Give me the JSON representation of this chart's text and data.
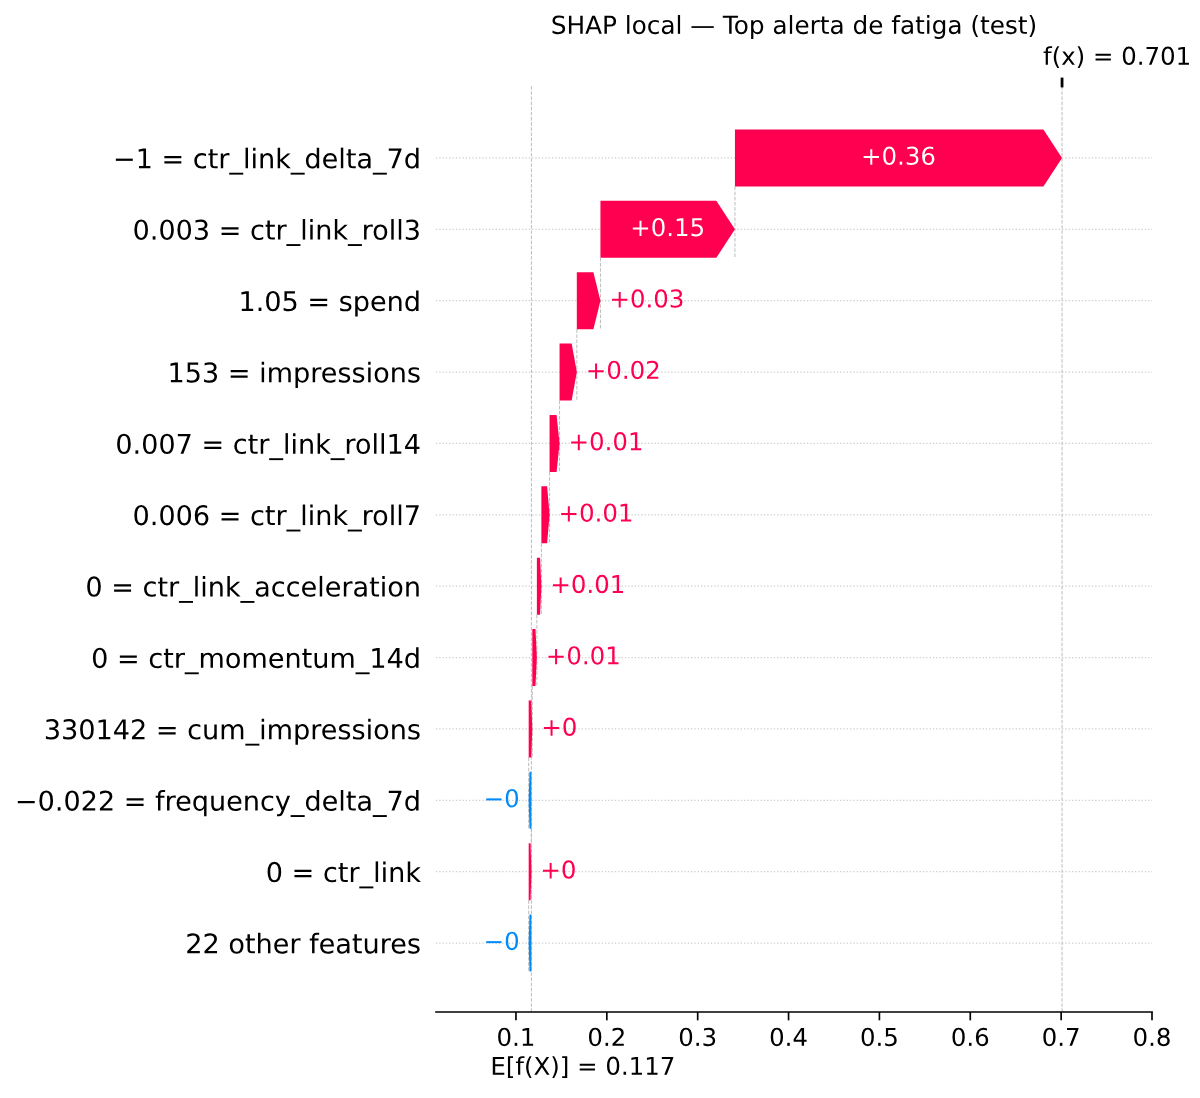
{
  "chart_data": {
    "type": "bar",
    "orientation": "horizontal",
    "title": "SHAP local — Top alerta de fatiga (test)",
    "categories": [
      "−1 = ctr_link_delta_7d",
      "0.003 = ctr_link_roll3",
      "1.05 = spend",
      "153 = impressions",
      "0.007 = ctr_link_roll14",
      "0.006 = ctr_link_roll7",
      "0 = ctr_link_acceleration",
      "0 = ctr_momentum_14d",
      "330142 = cum_impressions",
      "−0.022 = frequency_delta_7d",
      "0 = ctr_link",
      "22 other features"
    ],
    "base": [
      0.341,
      0.193,
      0.167,
      0.148,
      0.137,
      0.128,
      0.123,
      0.118,
      0.114,
      0.117,
      0.114,
      0.117
    ],
    "values": [
      0.36,
      0.148,
      0.026,
      0.019,
      0.011,
      0.009,
      0.005,
      0.005,
      0.004,
      -0.003,
      0.003,
      -0.003
    ],
    "colors": [
      "#ff0051",
      "#ff0051",
      "#ff0051",
      "#ff0051",
      "#ff0051",
      "#ff0051",
      "#ff0051",
      "#ff0051",
      "#ff0051",
      "#008bfb",
      "#ff0051",
      "#008bfb"
    ],
    "value_labels": [
      "+0.36",
      "+0.15",
      "+0.03",
      "+0.02",
      "+0.01",
      "+0.01",
      "+0.01",
      "+0.01",
      "+0",
      "−0",
      "+0",
      "−0"
    ],
    "xlim": [
      0.012,
      0.8
    ],
    "xticks": [
      0.1,
      0.2,
      0.3,
      0.4,
      0.5,
      0.6,
      0.7,
      0.8
    ],
    "ref_lines": [
      {
        "axis": "x",
        "value": 0.701,
        "label": "f(x) = 0.701",
        "color": "#bbbbbb",
        "line_style": "dashed"
      },
      {
        "axis": "x",
        "value": 0.117,
        "label": "E[f(X)] = 0.117",
        "color": "#bbbbbb",
        "line_style": "dashed"
      }
    ],
    "grid": "y"
  }
}
